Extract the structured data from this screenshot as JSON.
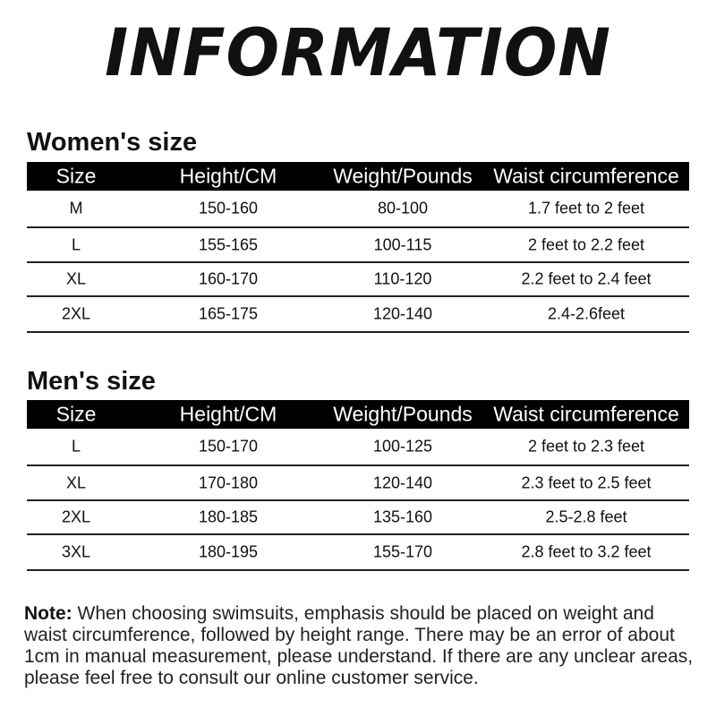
{
  "title": "INFORMATION",
  "columns": [
    "Size",
    "Height/CM",
    "Weight/Pounds",
    "Waist circumference"
  ],
  "women": {
    "heading": "Women's size",
    "rows": [
      [
        "M",
        "150-160",
        "80-100",
        "1.7 feet to 2 feet"
      ],
      [
        "L",
        "155-165",
        "100-115",
        "2 feet to 2.2 feet"
      ],
      [
        "XL",
        "160-170",
        "110-120",
        "2.2 feet to 2.4 feet"
      ],
      [
        "2XL",
        "165-175",
        "120-140",
        "2.4-2.6feet"
      ]
    ]
  },
  "men": {
    "heading": "Men's size",
    "rows": [
      [
        "L",
        "150-170",
        "100-125",
        "2 feet to 2.3 feet"
      ],
      [
        "XL",
        "170-180",
        "120-140",
        "2.3 feet to 2.5 feet"
      ],
      [
        "2XL",
        "180-185",
        "135-160",
        "2.5-2.8 feet"
      ],
      [
        "3XL",
        "180-195",
        "155-170",
        "2.8 feet to 3.2 feet"
      ]
    ]
  },
  "note": {
    "label": "Note:",
    "text": " When choosing swimsuits, emphasis should be placed on weight and waist circumference, followed by height range. There may be an error of about 1cm in manual measurement, please understand. If there are any unclear areas, please feel free to consult our online customer service."
  }
}
